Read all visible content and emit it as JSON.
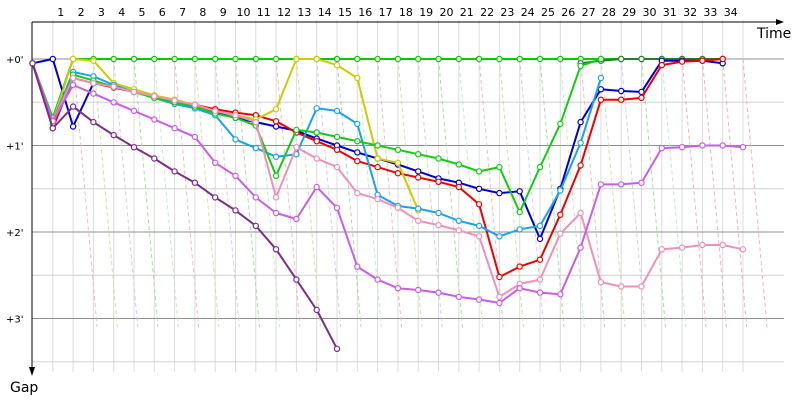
{
  "chart_data": {
    "type": "line",
    "xlabel": "Time",
    "ylabel": "Gap",
    "x": [
      1,
      2,
      3,
      4,
      5,
      6,
      7,
      8,
      9,
      10,
      11,
      12,
      13,
      14,
      15,
      16,
      17,
      18,
      19,
      20,
      21,
      22,
      23,
      24,
      25,
      26,
      27,
      28,
      29,
      30,
      31,
      32,
      33,
      34
    ],
    "x_tick_labels": [
      "1",
      "2",
      "3",
      "4",
      "5",
      "6",
      "7",
      "8",
      "9",
      "10",
      "11",
      "12",
      "13",
      "14",
      "15",
      "16",
      "17",
      "18",
      "19",
      "20",
      "21",
      "22",
      "23",
      "24",
      "25",
      "26",
      "27",
      "28",
      "29",
      "30",
      "31",
      "32",
      "33",
      "34"
    ],
    "y_tick_labels": [
      "+0'",
      "+1'",
      "+2'",
      "+3'"
    ],
    "y_ticks": [
      0,
      1,
      2,
      3
    ],
    "ylim": [
      -0.35,
      3.9
    ],
    "xlim": [
      0.15,
      35.6
    ],
    "y_inverted": true,
    "grid": true,
    "legend": "none",
    "series": [
      {
        "color": "#00cc00",
        "points": [
          [
            0,
            0.05
          ],
          [
            1,
            0.68
          ],
          [
            2,
            0.0
          ],
          [
            3,
            0.0
          ],
          [
            4,
            0.0
          ],
          [
            5,
            0.0
          ],
          [
            6,
            0.0
          ],
          [
            7,
            0.0
          ],
          [
            8,
            0.0
          ],
          [
            9,
            0.0
          ],
          [
            10,
            0.0
          ],
          [
            11,
            0.0
          ],
          [
            12,
            0.0
          ],
          [
            13,
            0.0
          ],
          [
            14,
            0.0
          ],
          [
            15,
            0.0
          ],
          [
            16,
            0.0
          ],
          [
            17,
            0.0
          ],
          [
            18,
            0.0
          ],
          [
            19,
            0.0
          ],
          [
            20,
            0.0
          ],
          [
            21,
            0.0
          ],
          [
            22,
            0.0
          ],
          [
            23,
            0.0
          ],
          [
            24,
            0.0
          ],
          [
            25,
            0.0
          ],
          [
            26,
            0.0
          ],
          [
            27,
            0.0
          ],
          [
            28,
            0.0
          ],
          [
            29,
            0.0
          ],
          [
            30,
            0.0
          ],
          [
            31,
            0.0
          ],
          [
            32,
            0.0
          ],
          [
            33,
            0.0
          ],
          [
            34,
            0.0
          ]
        ]
      },
      {
        "color": "#2b7a2b",
        "points": [
          [
            27,
            0.05
          ],
          [
            28,
            0.02
          ],
          [
            29,
            0.0
          ],
          [
            30,
            0.0
          ],
          [
            31,
            0.0
          ],
          [
            32,
            0.0
          ],
          [
            33,
            0.0
          ],
          [
            34,
            0.0
          ]
        ]
      },
      {
        "color": "#0000cc",
        "points": [
          [
            0,
            0.05
          ],
          [
            1,
            0.0
          ],
          [
            2,
            0.78
          ],
          [
            3,
            0.28
          ],
          [
            4,
            0.32
          ],
          [
            5,
            0.38
          ],
          [
            6,
            0.44
          ],
          [
            7,
            0.5
          ],
          [
            8,
            0.55
          ],
          [
            9,
            0.62
          ],
          [
            10,
            0.68
          ],
          [
            11,
            0.73
          ],
          [
            12,
            0.78
          ],
          [
            13,
            0.83
          ],
          [
            14,
            0.92
          ],
          [
            15,
            1.0
          ],
          [
            16,
            1.08
          ],
          [
            17,
            1.15
          ],
          [
            18,
            1.22
          ],
          [
            19,
            1.3
          ],
          [
            20,
            1.38
          ],
          [
            21,
            1.43
          ],
          [
            22,
            1.5
          ],
          [
            23,
            1.55
          ],
          [
            24,
            1.53
          ],
          [
            25,
            2.08
          ],
          [
            26,
            1.5
          ],
          [
            27,
            0.73
          ],
          [
            28,
            0.35
          ],
          [
            29,
            0.37
          ],
          [
            30,
            0.38
          ],
          [
            31,
            0.02
          ],
          [
            32,
            0.02
          ],
          [
            33,
            0.02
          ],
          [
            34,
            0.05
          ]
        ]
      },
      {
        "color": "#ee0000",
        "points": [
          [
            0,
            0.05
          ],
          [
            1,
            0.8
          ],
          [
            2,
            0.22
          ],
          [
            3,
            0.28
          ],
          [
            4,
            0.33
          ],
          [
            5,
            0.38
          ],
          [
            6,
            0.44
          ],
          [
            7,
            0.48
          ],
          [
            8,
            0.53
          ],
          [
            9,
            0.58
          ],
          [
            10,
            0.62
          ],
          [
            11,
            0.65
          ],
          [
            12,
            0.72
          ],
          [
            13,
            0.85
          ],
          [
            14,
            0.95
          ],
          [
            15,
            1.05
          ],
          [
            16,
            1.18
          ],
          [
            17,
            1.25
          ],
          [
            18,
            1.32
          ],
          [
            19,
            1.37
          ],
          [
            20,
            1.42
          ],
          [
            21,
            1.48
          ],
          [
            22,
            1.68
          ],
          [
            23,
            2.52
          ],
          [
            24,
            2.4
          ],
          [
            25,
            2.32
          ],
          [
            26,
            1.8
          ],
          [
            27,
            1.23
          ],
          [
            28,
            0.47
          ],
          [
            29,
            0.47
          ],
          [
            30,
            0.45
          ],
          [
            31,
            0.07
          ],
          [
            32,
            0.03
          ],
          [
            33,
            0.02
          ],
          [
            34,
            0.0
          ]
        ]
      },
      {
        "color": "#cccc00",
        "points": [
          [
            0,
            0.05
          ],
          [
            1,
            0.72
          ],
          [
            2,
            0.0
          ],
          [
            3,
            0.02
          ],
          [
            4,
            0.28
          ],
          [
            5,
            0.35
          ],
          [
            6,
            0.42
          ],
          [
            7,
            0.47
          ],
          [
            8,
            0.53
          ],
          [
            9,
            0.6
          ],
          [
            10,
            0.65
          ],
          [
            11,
            0.7
          ],
          [
            12,
            0.58
          ],
          [
            13,
            0.0
          ],
          [
            14,
            0.0
          ],
          [
            15,
            0.07
          ],
          [
            16,
            0.22
          ],
          [
            17,
            1.15
          ],
          [
            18,
            1.2
          ],
          [
            19,
            1.75
          ]
        ]
      },
      {
        "color": "#1aa2ee",
        "points": [
          [
            0,
            0.05
          ],
          [
            1,
            0.72
          ],
          [
            2,
            0.15
          ],
          [
            3,
            0.2
          ],
          [
            4,
            0.3
          ],
          [
            5,
            0.38
          ],
          [
            6,
            0.45
          ],
          [
            7,
            0.52
          ],
          [
            8,
            0.57
          ],
          [
            9,
            0.65
          ],
          [
            10,
            0.93
          ],
          [
            11,
            1.03
          ],
          [
            12,
            1.13
          ],
          [
            13,
            1.1
          ],
          [
            14,
            0.57
          ],
          [
            15,
            0.6
          ],
          [
            16,
            0.75
          ],
          [
            17,
            1.57
          ],
          [
            18,
            1.7
          ],
          [
            19,
            1.73
          ],
          [
            20,
            1.78
          ],
          [
            21,
            1.87
          ],
          [
            22,
            1.93
          ],
          [
            23,
            2.05
          ],
          [
            24,
            1.97
          ],
          [
            25,
            1.93
          ],
          [
            26,
            1.52
          ],
          [
            27,
            0.97
          ],
          [
            28,
            0.22
          ]
        ]
      },
      {
        "color": "#11cc11",
        "points": [
          [
            0,
            0.05
          ],
          [
            1,
            0.75
          ],
          [
            2,
            0.18
          ],
          [
            3,
            0.25
          ],
          [
            4,
            0.32
          ],
          [
            5,
            0.38
          ],
          [
            6,
            0.45
          ],
          [
            7,
            0.5
          ],
          [
            8,
            0.55
          ],
          [
            9,
            0.63
          ],
          [
            10,
            0.68
          ],
          [
            11,
            0.77
          ],
          [
            12,
            1.35
          ],
          [
            13,
            0.82
          ],
          [
            14,
            0.85
          ],
          [
            15,
            0.9
          ],
          [
            16,
            0.95
          ],
          [
            17,
            1.0
          ],
          [
            18,
            1.05
          ],
          [
            19,
            1.1
          ],
          [
            20,
            1.15
          ],
          [
            21,
            1.22
          ],
          [
            22,
            1.3
          ],
          [
            23,
            1.25
          ],
          [
            24,
            1.77
          ],
          [
            25,
            1.25
          ],
          [
            26,
            0.75
          ],
          [
            27,
            0.08
          ],
          [
            28,
            0.0
          ]
        ]
      },
      {
        "color": "#f090b8",
        "points": [
          [
            0,
            0.05
          ],
          [
            1,
            0.72
          ],
          [
            2,
            0.22
          ],
          [
            3,
            0.28
          ],
          [
            4,
            0.32
          ],
          [
            5,
            0.38
          ],
          [
            6,
            0.43
          ],
          [
            7,
            0.48
          ],
          [
            8,
            0.53
          ],
          [
            9,
            0.6
          ],
          [
            10,
            0.65
          ],
          [
            11,
            0.73
          ],
          [
            12,
            1.6
          ],
          [
            13,
            1.02
          ],
          [
            14,
            1.15
          ],
          [
            15,
            1.25
          ],
          [
            16,
            1.55
          ],
          [
            17,
            1.62
          ],
          [
            18,
            1.72
          ],
          [
            19,
            1.87
          ],
          [
            20,
            1.92
          ],
          [
            21,
            1.98
          ],
          [
            22,
            2.05
          ],
          [
            23,
            2.75
          ],
          [
            24,
            2.6
          ],
          [
            25,
            2.55
          ],
          [
            26,
            2.02
          ],
          [
            27,
            1.78
          ],
          [
            28,
            2.58
          ],
          [
            29,
            2.63
          ],
          [
            30,
            2.63
          ],
          [
            31,
            2.2
          ],
          [
            32,
            2.18
          ],
          [
            33,
            2.15
          ],
          [
            34,
            2.15
          ],
          [
            35,
            2.2
          ]
        ]
      },
      {
        "color": "#c85ee8",
        "points": [
          [
            0,
            0.05
          ],
          [
            1,
            0.72
          ],
          [
            2,
            0.3
          ],
          [
            3,
            0.4
          ],
          [
            4,
            0.5
          ],
          [
            5,
            0.6
          ],
          [
            6,
            0.7
          ],
          [
            7,
            0.8
          ],
          [
            8,
            0.9
          ],
          [
            9,
            1.2
          ],
          [
            10,
            1.35
          ],
          [
            11,
            1.6
          ],
          [
            12,
            1.78
          ],
          [
            13,
            1.85
          ],
          [
            14,
            1.48
          ],
          [
            15,
            1.72
          ],
          [
            16,
            2.4
          ],
          [
            17,
            2.55
          ],
          [
            18,
            2.65
          ],
          [
            19,
            2.67
          ],
          [
            20,
            2.7
          ],
          [
            21,
            2.75
          ],
          [
            22,
            2.78
          ],
          [
            23,
            2.82
          ],
          [
            24,
            2.65
          ],
          [
            25,
            2.7
          ],
          [
            26,
            2.72
          ],
          [
            27,
            2.18
          ],
          [
            28,
            1.45
          ],
          [
            29,
            1.45
          ],
          [
            30,
            1.43
          ],
          [
            31,
            1.03
          ],
          [
            32,
            1.02
          ],
          [
            33,
            1.0
          ],
          [
            34,
            1.0
          ],
          [
            35,
            1.02
          ]
        ]
      },
      {
        "color": "#7c2e8c",
        "points": [
          [
            0,
            0.05
          ],
          [
            1,
            0.8
          ],
          [
            2,
            0.55
          ],
          [
            3,
            0.73
          ],
          [
            4,
            0.88
          ],
          [
            5,
            1.02
          ],
          [
            6,
            1.15
          ],
          [
            7,
            1.3
          ],
          [
            8,
            1.43
          ],
          [
            9,
            1.6
          ],
          [
            10,
            1.75
          ],
          [
            11,
            1.93
          ],
          [
            12,
            2.2
          ],
          [
            13,
            2.55
          ],
          [
            14,
            2.9
          ],
          [
            15,
            3.35
          ]
        ]
      }
    ]
  },
  "labels": {
    "x_axis_title": "Time",
    "y_axis_title": "Gap"
  }
}
